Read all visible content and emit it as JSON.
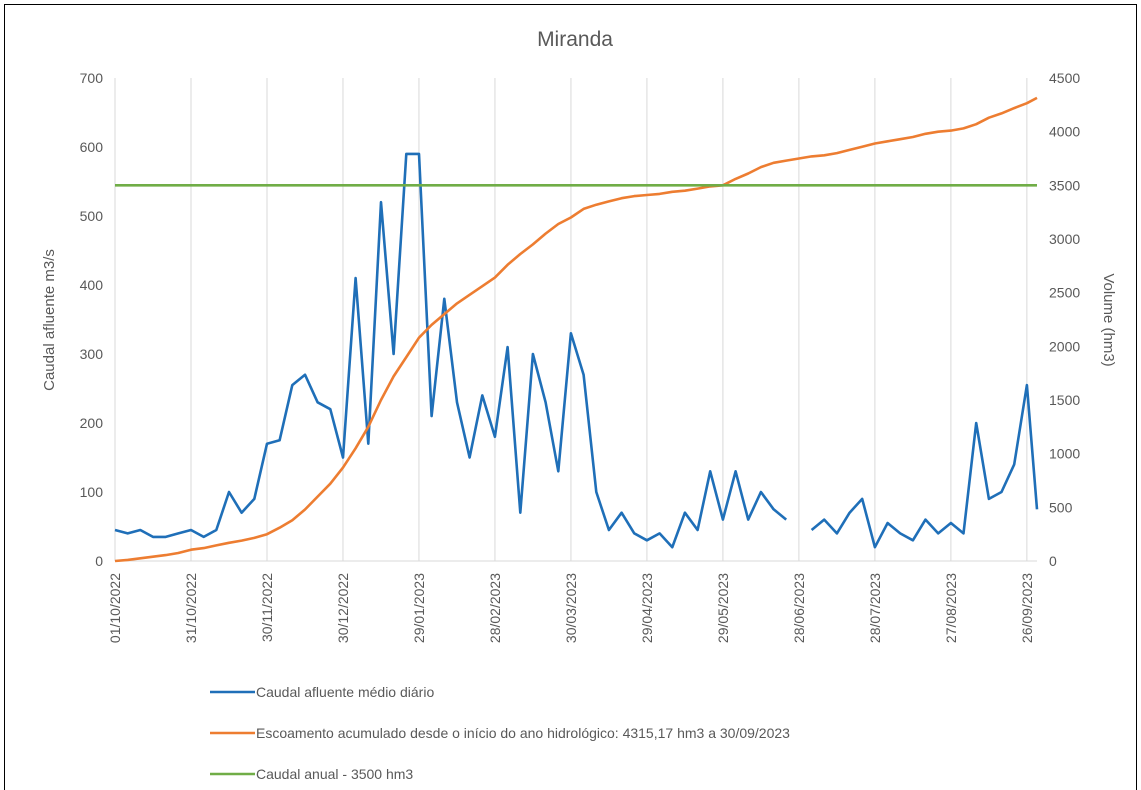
{
  "chart_data": {
    "type": "line",
    "title": "Miranda",
    "y_label": "Caudal afluente m3/s",
    "y2_label": "Volume (hm3)",
    "x": [
      "01/10/2022",
      "06/10/2022",
      "11/10/2022",
      "16/10/2022",
      "21/10/2022",
      "26/10/2022",
      "31/10/2022",
      "05/11/2022",
      "10/11/2022",
      "15/11/2022",
      "20/11/2022",
      "25/11/2022",
      "30/11/2022",
      "05/12/2022",
      "10/12/2022",
      "15/12/2022",
      "20/12/2022",
      "25/12/2022",
      "30/12/2022",
      "04/01/2023",
      "09/01/2023",
      "14/01/2023",
      "19/01/2023",
      "24/01/2023",
      "29/01/2023",
      "03/02/2023",
      "08/02/2023",
      "13/02/2023",
      "18/02/2023",
      "23/02/2023",
      "28/02/2023",
      "05/03/2023",
      "10/03/2023",
      "15/03/2023",
      "20/03/2023",
      "25/03/2023",
      "30/03/2023",
      "04/04/2023",
      "09/04/2023",
      "14/04/2023",
      "19/04/2023",
      "24/04/2023",
      "29/04/2023",
      "04/05/2023",
      "09/05/2023",
      "14/05/2023",
      "19/05/2023",
      "24/05/2023",
      "29/05/2023",
      "03/06/2023",
      "08/06/2023",
      "13/06/2023",
      "18/06/2023",
      "23/06/2023",
      "28/06/2023",
      "03/07/2023",
      "08/07/2023",
      "13/07/2023",
      "18/07/2023",
      "23/07/2023",
      "28/07/2023",
      "02/08/2023",
      "07/08/2023",
      "12/08/2023",
      "17/08/2023",
      "22/08/2023",
      "27/08/2023",
      "01/09/2023",
      "06/09/2023",
      "11/09/2023",
      "16/09/2023",
      "21/09/2023",
      "26/09/2023",
      "30/09/2023"
    ],
    "series": [
      {
        "name": "Caudal afluente médio diário",
        "color": "#1f6fb8",
        "axis": "y",
        "values": [
          45,
          40,
          45,
          35,
          35,
          40,
          45,
          35,
          45,
          100,
          70,
          90,
          170,
          175,
          255,
          270,
          230,
          220,
          150,
          410,
          170,
          520,
          300,
          590,
          590,
          210,
          380,
          230,
          150,
          240,
          180,
          310,
          70,
          300,
          230,
          130,
          330,
          270,
          100,
          45,
          70,
          40,
          30,
          40,
          20,
          70,
          45,
          130,
          60,
          130,
          60,
          100,
          75,
          60,
          null,
          45,
          60,
          40,
          70,
          90,
          20,
          55,
          40,
          30,
          60,
          40,
          55,
          40,
          200,
          90,
          100,
          140,
          255,
          75
        ]
      },
      {
        "name": "Escoamento acumulado desde o início do ano hidrológico: 4315,17 hm3 a 30/09/2023",
        "color": "#ed7d31",
        "axis": "y2",
        "values": [
          0,
          10,
          25,
          40,
          55,
          75,
          105,
          120,
          145,
          170,
          190,
          215,
          250,
          310,
          380,
          480,
          600,
          720,
          870,
          1050,
          1250,
          1500,
          1720,
          1900,
          2080,
          2200,
          2300,
          2400,
          2480,
          2560,
          2640,
          2760,
          2860,
          2950,
          3050,
          3140,
          3200,
          3280,
          3320,
          3350,
          3380,
          3400,
          3410,
          3420,
          3440,
          3450,
          3470,
          3490,
          3500,
          3560,
          3610,
          3670,
          3710,
          3730,
          3750,
          3770,
          3780,
          3800,
          3830,
          3860,
          3890,
          3910,
          3930,
          3950,
          3980,
          4000,
          4010,
          4030,
          4070,
          4130,
          4170,
          4220,
          4265,
          4315
        ]
      },
      {
        "name": "Caudal anual - 3500 hm3",
        "color": "#70ad47",
        "axis": "y2",
        "x": [
          "01/10/2022",
          "30/09/2023"
        ],
        "values": [
          3500,
          3500
        ]
      }
    ],
    "xlim": [
      "01/10/2022",
      "30/09/2023"
    ],
    "xticks": [
      "01/10/2022",
      "31/10/2022",
      "30/11/2022",
      "30/12/2022",
      "29/01/2023",
      "28/02/2023",
      "30/03/2023",
      "29/04/2023",
      "29/05/2023",
      "28/06/2023",
      "28/07/2023",
      "27/08/2023",
      "26/09/2023"
    ],
    "ylim": [
      0,
      700
    ],
    "yticks": [
      0,
      100,
      200,
      300,
      400,
      500,
      600,
      700
    ],
    "y2lim": [
      0,
      4500
    ],
    "y2ticks": [
      0,
      500,
      1000,
      1500,
      2000,
      2500,
      3000,
      3500,
      4000,
      4500
    ],
    "grid": true
  }
}
